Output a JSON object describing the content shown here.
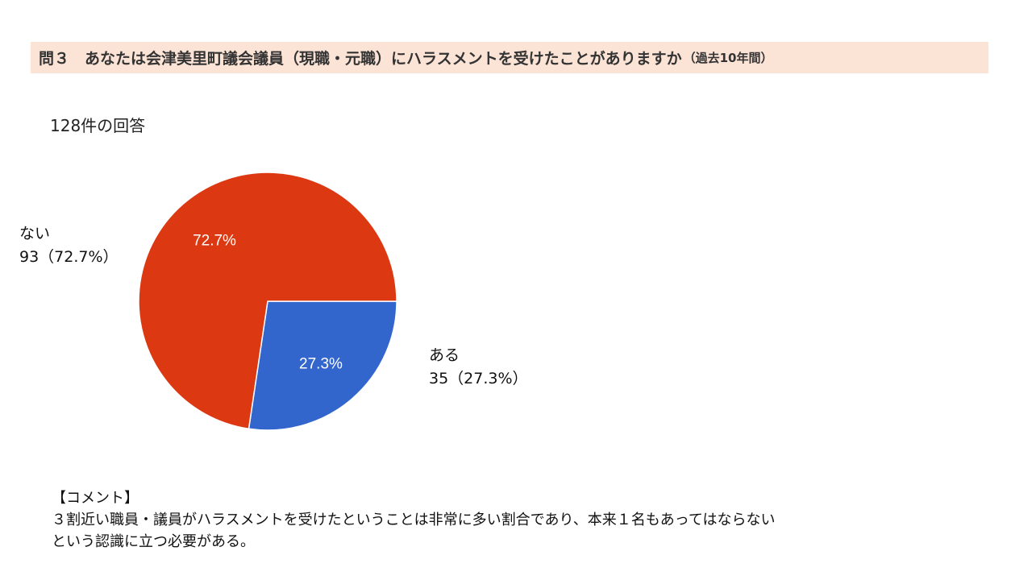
{
  "header": {
    "title": "問３　あなたは会津美里町議会議員（現職・元職）にハラスメントを受けたことがありますか",
    "title_suffix": "（過去10年間）",
    "background_color": "#fbe3d6"
  },
  "response_count": "128件の回答",
  "chart_data": {
    "type": "pie",
    "slices": [
      {
        "label": "ない",
        "value": 93,
        "percent": 72.7,
        "percent_label": "72.7%",
        "legend_value": "93（72.7%）",
        "color": "#dc3912"
      },
      {
        "label": "ある",
        "value": 35,
        "percent": 27.3,
        "percent_label": "27.3%",
        "legend_value": "35（27.3%）",
        "color": "#3366cc"
      }
    ]
  },
  "comment": {
    "heading": "【コメント】",
    "line1": "３割近い職員・議員がハラスメントを受けたということは非常に多い割合であり、本来１名もあってはならない",
    "line2": "という認識に立つ必要がある。"
  }
}
